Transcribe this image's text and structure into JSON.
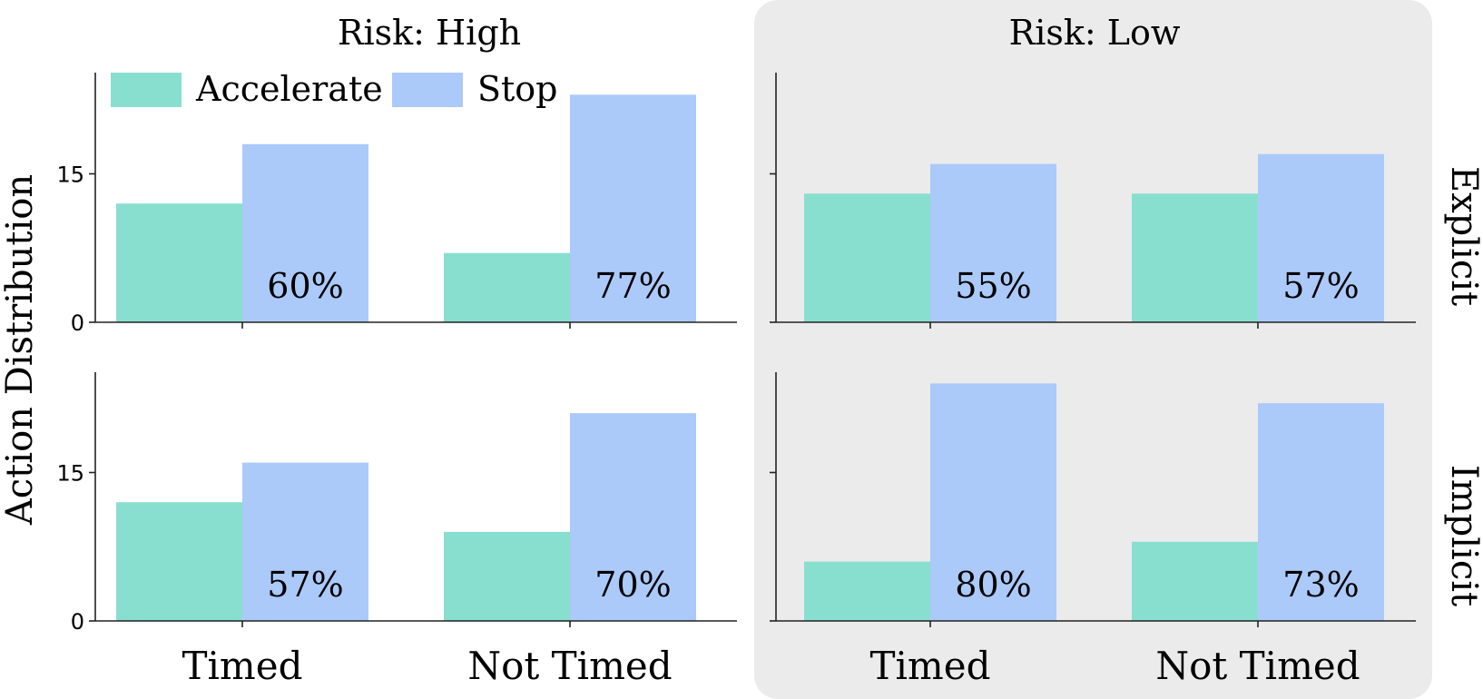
{
  "chart_data": {
    "type": "bar",
    "ylabel": "Action Distribution",
    "y_ticks": [
      "0",
      "15"
    ],
    "ylim": [
      0,
      25
    ],
    "categories": [
      "Timed",
      "Not Timed"
    ],
    "legend": {
      "placement": "top-left",
      "entries": [
        "Accelerate",
        "Stop"
      ]
    },
    "colors": {
      "Accelerate": "#89dfcf",
      "Stop": "#abcafa",
      "highlight_panel_bg": "#ebebeb"
    },
    "columns": [
      {
        "label": "Risk: High",
        "highlighted": false
      },
      {
        "label": "Risk: Low",
        "highlighted": true
      }
    ],
    "rows": [
      "Explicit",
      "Implicit"
    ],
    "panels": [
      {
        "column": "Risk: High",
        "row": "Explicit",
        "series": [
          {
            "name": "Accelerate",
            "values": [
              12,
              7
            ]
          },
          {
            "name": "Stop",
            "values": [
              18,
              23
            ]
          }
        ],
        "annotations": [
          "60%",
          "77%"
        ]
      },
      {
        "column": "Risk: Low",
        "row": "Explicit",
        "series": [
          {
            "name": "Accelerate",
            "values": [
              13,
              13
            ]
          },
          {
            "name": "Stop",
            "values": [
              16,
              17
            ]
          }
        ],
        "annotations": [
          "55%",
          "57%"
        ]
      },
      {
        "column": "Risk: High",
        "row": "Implicit",
        "series": [
          {
            "name": "Accelerate",
            "values": [
              12,
              9
            ]
          },
          {
            "name": "Stop",
            "values": [
              16,
              21
            ]
          }
        ],
        "annotations": [
          "57%",
          "70%"
        ]
      },
      {
        "column": "Risk: Low",
        "row": "Implicit",
        "series": [
          {
            "name": "Accelerate",
            "values": [
              6,
              8
            ]
          },
          {
            "name": "Stop",
            "values": [
              24,
              22
            ]
          }
        ],
        "annotations": [
          "80%",
          "73%"
        ]
      }
    ]
  }
}
